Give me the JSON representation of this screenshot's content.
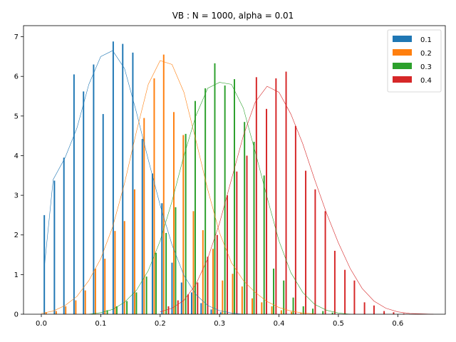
{
  "chart_data": {
    "type": "bar",
    "title": "VB : N = 1000, alpha = 0.01",
    "xlabel": "",
    "ylabel": "",
    "xlim": [
      -0.03,
      0.68
    ],
    "ylim": [
      0,
      7.28
    ],
    "xticks": [
      0.0,
      0.1,
      0.2,
      0.3,
      0.4,
      0.5,
      0.6
    ],
    "xtick_labels": [
      "0.0",
      "0.1",
      "0.2",
      "0.3",
      "0.4",
      "0.5",
      "0.6"
    ],
    "yticks": [
      0,
      1,
      2,
      3,
      4,
      5,
      6,
      7
    ],
    "ytick_labels": [
      "0",
      "1",
      "2",
      "3",
      "4",
      "5",
      "6",
      "7"
    ],
    "bin_width": 0.0165,
    "grid": false,
    "legend_position": "top-right",
    "series": [
      {
        "name": "0.1",
        "color": "#1f77b4",
        "x": [
          0.005,
          0.022,
          0.038,
          0.055,
          0.071,
          0.088,
          0.104,
          0.121,
          0.137,
          0.154,
          0.17,
          0.187,
          0.203,
          0.22,
          0.236,
          0.253,
          0.269,
          0.286,
          0.302
        ],
        "values": [
          2.5,
          3.37,
          3.95,
          6.05,
          5.62,
          6.3,
          5.05,
          6.88,
          6.82,
          6.6,
          4.42,
          3.55,
          2.8,
          1.3,
          0.8,
          0.55,
          0.28,
          0.12,
          0.05
        ],
        "kde": {
          "x": [
            0.005,
            0.02,
            0.04,
            0.06,
            0.08,
            0.1,
            0.12,
            0.14,
            0.16,
            0.18,
            0.2,
            0.22,
            0.24,
            0.26,
            0.28,
            0.3,
            0.32,
            0.34
          ],
          "y": [
            1.18,
            3.4,
            3.95,
            4.7,
            5.8,
            6.5,
            6.65,
            6.2,
            5.1,
            3.9,
            2.75,
            1.75,
            0.98,
            0.5,
            0.22,
            0.09,
            0.03,
            0.0
          ]
        }
      },
      {
        "name": "0.2",
        "color": "#ff7f0e",
        "x": [
          0.008,
          0.025,
          0.041,
          0.058,
          0.074,
          0.091,
          0.107,
          0.124,
          0.14,
          0.157,
          0.173,
          0.19,
          0.206,
          0.223,
          0.239,
          0.256,
          0.272,
          0.289,
          0.305,
          0.322,
          0.338,
          0.355,
          0.371,
          0.388,
          0.404,
          0.421,
          0.437
        ],
        "values": [
          0.05,
          0.08,
          0.2,
          0.35,
          0.6,
          1.15,
          1.4,
          2.1,
          2.35,
          3.15,
          4.95,
          5.95,
          6.55,
          5.1,
          4.52,
          2.6,
          2.12,
          1.65,
          0.85,
          1.02,
          0.7,
          0.4,
          0.3,
          0.2,
          0.1,
          0.06,
          0.03
        ],
        "kde": {
          "x": [
            0.0,
            0.02,
            0.04,
            0.06,
            0.08,
            0.1,
            0.12,
            0.14,
            0.16,
            0.18,
            0.2,
            0.22,
            0.24,
            0.26,
            0.28,
            0.3,
            0.32,
            0.34,
            0.36,
            0.38,
            0.4,
            0.42,
            0.44,
            0.46
          ],
          "y": [
            0.02,
            0.08,
            0.22,
            0.45,
            0.85,
            1.4,
            2.2,
            3.3,
            4.6,
            5.8,
            6.4,
            6.3,
            5.6,
            4.4,
            3.15,
            2.05,
            1.3,
            0.85,
            0.55,
            0.32,
            0.17,
            0.08,
            0.03,
            0.01
          ]
        }
      },
      {
        "name": "0.3",
        "color": "#2ca02c",
        "x": [
          0.111,
          0.127,
          0.144,
          0.16,
          0.177,
          0.193,
          0.21,
          0.226,
          0.243,
          0.259,
          0.276,
          0.292,
          0.309,
          0.325,
          0.342,
          0.358,
          0.375,
          0.391,
          0.408,
          0.424,
          0.441,
          0.457,
          0.474,
          0.49
        ],
        "values": [
          0.1,
          0.2,
          0.33,
          0.55,
          0.95,
          1.55,
          2.05,
          2.7,
          4.55,
          5.38,
          5.7,
          6.33,
          5.77,
          5.93,
          4.85,
          4.35,
          3.5,
          1.15,
          0.85,
          0.42,
          0.2,
          0.14,
          0.08,
          0.04
        ],
        "kde": {
          "x": [
            0.08,
            0.1,
            0.12,
            0.14,
            0.16,
            0.18,
            0.2,
            0.22,
            0.24,
            0.26,
            0.28,
            0.3,
            0.32,
            0.34,
            0.36,
            0.38,
            0.4,
            0.42,
            0.44,
            0.46,
            0.48,
            0.5,
            0.52
          ],
          "y": [
            0.0,
            0.04,
            0.12,
            0.3,
            0.6,
            1.1,
            1.85,
            2.85,
            4.0,
            5.0,
            5.7,
            5.85,
            5.8,
            5.2,
            4.1,
            2.95,
            1.85,
            1.05,
            0.55,
            0.25,
            0.1,
            0.03,
            0.0
          ]
        }
      },
      {
        "name": "0.4",
        "color": "#d62728",
        "x": [
          0.214,
          0.23,
          0.247,
          0.263,
          0.28,
          0.296,
          0.313,
          0.329,
          0.346,
          0.362,
          0.379,
          0.395,
          0.412,
          0.428,
          0.445,
          0.461,
          0.478,
          0.494,
          0.511,
          0.527,
          0.544,
          0.56,
          0.577,
          0.593,
          0.61
        ],
        "values": [
          0.2,
          0.35,
          0.5,
          0.8,
          1.45,
          2.0,
          3.0,
          3.6,
          4.0,
          5.98,
          5.18,
          5.95,
          6.12,
          4.75,
          3.62,
          3.15,
          2.6,
          1.6,
          1.12,
          0.85,
          0.3,
          0.22,
          0.08,
          0.05,
          0.02
        ],
        "kde": {
          "x": [
            0.2,
            0.22,
            0.24,
            0.26,
            0.28,
            0.3,
            0.32,
            0.34,
            0.36,
            0.38,
            0.4,
            0.42,
            0.44,
            0.46,
            0.48,
            0.5,
            0.52,
            0.54,
            0.56,
            0.58,
            0.6,
            0.62,
            0.64,
            0.66
          ],
          "y": [
            0.06,
            0.15,
            0.35,
            0.75,
            1.4,
            2.3,
            3.4,
            4.5,
            5.35,
            5.75,
            5.6,
            5.05,
            4.3,
            3.4,
            2.55,
            1.8,
            1.15,
            0.65,
            0.33,
            0.15,
            0.06,
            0.02,
            0.01,
            0.0
          ]
        }
      }
    ]
  }
}
